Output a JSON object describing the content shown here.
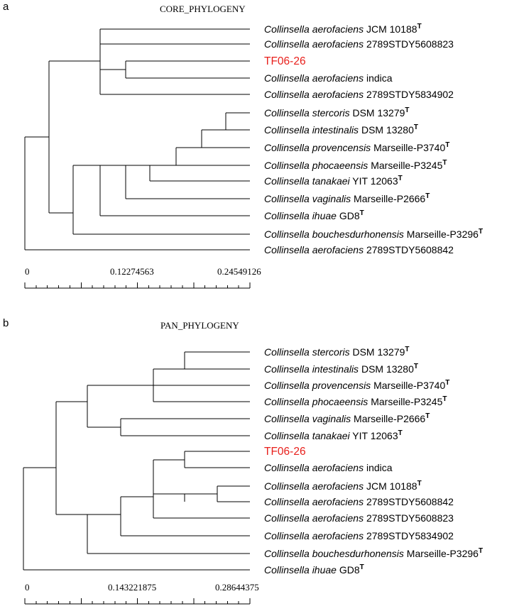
{
  "panels": [
    {
      "letter": "a",
      "title": "CORE_PHYLOGENY",
      "scale": {
        "labels": [
          "0",
          "0.12274563",
          "0.24549126"
        ]
      },
      "leaves": [
        {
          "genus": "Collinsella",
          "species": "aerofaciens",
          "strain": "JCM 10188",
          "type": "T"
        },
        {
          "genus": "Collinsella",
          "species": "aerofaciens",
          "strain": "2789STDY5608823",
          "type": ""
        },
        {
          "label": "TF06-26",
          "highlight": true
        },
        {
          "genus": "Collinsella",
          "species": "aerofaciens",
          "strain": "indica",
          "type": ""
        },
        {
          "genus": "Collinsella",
          "species": "aerofaciens",
          "strain": "2789STDY5834902",
          "type": ""
        },
        {
          "genus": "Collinsella",
          "species": "stercoris",
          "strain": "DSM 13279",
          "type": "T"
        },
        {
          "genus": "Collinsella",
          "species": "intestinalis",
          "strain": "DSM 13280",
          "type": "T"
        },
        {
          "genus": "Collinsella",
          "species": "provencensis",
          "strain": "Marseille-P3740",
          "type": "T"
        },
        {
          "genus": "Collinsella",
          "species": "phocaeensis",
          "strain": "Marseille-P3245",
          "type": "T"
        },
        {
          "genus": "Collinsella",
          "species": "tanakaei",
          "strain": "YIT 12063",
          "type": "T"
        },
        {
          "genus": "Collinsella",
          "species": "vaginalis",
          "strain": "Marseille-P2666",
          "type": "T"
        },
        {
          "genus": "Collinsella",
          "species": "ihuae",
          "strain": "GD8",
          "type": "T"
        },
        {
          "genus": "Collinsella",
          "species": "bouchesdurhonensis",
          "strain": "Marseille-P3296",
          "type": "T"
        },
        {
          "genus": "Collinsella",
          "species": "aerofaciens",
          "strain": "2789STDY5608842",
          "type": ""
        }
      ]
    },
    {
      "letter": "b",
      "title": "PAN_PHYLOGENY",
      "scale": {
        "labels": [
          "0",
          "0.143221875",
          "0.28644375"
        ]
      },
      "leaves": [
        {
          "genus": "Collinsella",
          "species": "stercoris",
          "strain": "DSM 13279",
          "type": "T"
        },
        {
          "genus": "Collinsella",
          "species": "intestinalis",
          "strain": "DSM 13280",
          "type": "T"
        },
        {
          "genus": "Collinsella",
          "species": "provencensis",
          "strain": "Marseille-P3740",
          "type": "T"
        },
        {
          "genus": "Collinsella",
          "species": "phocaeensis",
          "strain": "Marseille-P3245",
          "type": "T"
        },
        {
          "genus": "Collinsella",
          "species": "vaginalis",
          "strain": "Marseille-P2666",
          "type": "T"
        },
        {
          "genus": "Collinsella",
          "species": "tanakaei",
          "strain": "YIT 12063",
          "type": "T"
        },
        {
          "label": "TF06-26",
          "highlight": true
        },
        {
          "genus": "Collinsella",
          "species": "aerofaciens",
          "strain": "indica",
          "type": ""
        },
        {
          "genus": "Collinsella",
          "species": "aerofaciens",
          "strain": "JCM 10188",
          "type": "T"
        },
        {
          "genus": "Collinsella",
          "species": "aerofaciens",
          "strain": "2789STDY5608842",
          "type": ""
        },
        {
          "genus": "Collinsella",
          "species": "aerofaciens",
          "strain": "2789STDY5608823",
          "type": ""
        },
        {
          "genus": "Collinsella",
          "species": "aerofaciens",
          "strain": "2789STDY5834902",
          "type": ""
        },
        {
          "genus": "Collinsella",
          "species": "bouchesdurhonensis",
          "strain": "Marseille-P3296",
          "type": "T"
        },
        {
          "genus": "Collinsella",
          "species": "ihuae",
          "strain": "GD8",
          "type": "T"
        }
      ]
    }
  ],
  "colors": {
    "highlight": "#e8201c",
    "line": "#000000"
  }
}
